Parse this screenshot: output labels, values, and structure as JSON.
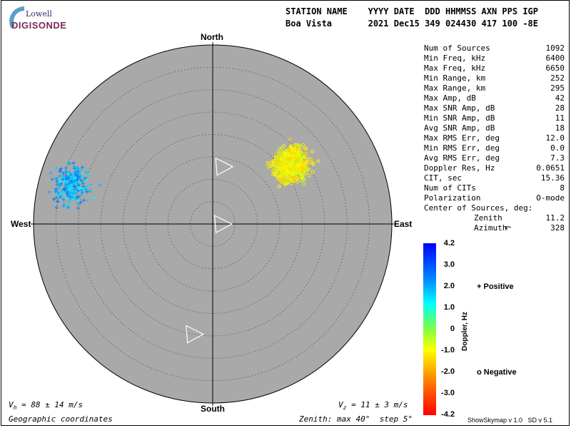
{
  "logo": {
    "top_text": "Lowell",
    "bottom_text": "DIGISONDE"
  },
  "header": {
    "line1": "STATION NAME    YYYY DATE  DDD HHMMSS AXN PPS IGP",
    "line2": "Boa Vista       2021 Dec15 349 024430 417 100 -8E"
  },
  "stats": [
    {
      "label": "Num of Sources",
      "value": "1092"
    },
    {
      "label": "Min Freq, kHz",
      "value": "6400"
    },
    {
      "label": "Max Freq, kHz",
      "value": "6650"
    },
    {
      "label": "Min Range, km",
      "value": "252"
    },
    {
      "label": "Max Range, km",
      "value": "295"
    },
    {
      "label": "Max Amp, dB",
      "value": "42"
    },
    {
      "label": "Max SNR Amp, dB",
      "value": "28"
    },
    {
      "label": "Min SNR Amp, dB",
      "value": "11"
    },
    {
      "label": "Avg SNR Amp, dB",
      "value": "18"
    },
    {
      "label": "Max RMS Err, deg",
      "value": "12.0"
    },
    {
      "label": "Min RMS Err, deg",
      "value": "0.0"
    },
    {
      "label": "Avg RMS Err, deg",
      "value": "7.3"
    },
    {
      "label": "Doppler Res, Hz",
      "value": "0.0651"
    },
    {
      "label": "CIT, sec",
      "value": "15.36"
    },
    {
      "label": "Num of CITs",
      "value": "8"
    },
    {
      "label": "Polarization",
      "value": "O-mode"
    }
  ],
  "center": {
    "heading": "Center of Sources, deg:",
    "zenith_label": "Zenith",
    "zenith_value": "11.2",
    "azimuth_label": "Azimuth",
    "azimuth_value": "328"
  },
  "compass": {
    "north": "North",
    "south": "South",
    "east": "East",
    "west": "West"
  },
  "footer": {
    "vh": "V",
    "vh_sub": "h",
    "vh_value": " = 88 ± 14 m/s",
    "vz": "V",
    "vz_sub": "z",
    "vz_value": " = 11 ± 3 m/s",
    "coords": "Geographic coordinates",
    "zenith_info": "Zenith: max 40°  step 5°",
    "version": "ShowSkymap v 1.0   SD v 5.1"
  },
  "colorbar": {
    "title": "Doppler, Hz",
    "ticks": [
      "4.2",
      "3.0",
      "2.0",
      "1.0",
      "0",
      "-1.0",
      "-2.0",
      "-3.0",
      "-4.2"
    ],
    "range": [
      -4.2,
      4.2
    ]
  },
  "legend": {
    "positive": "+ Positive",
    "positive_color": "#1a1ab0",
    "negative": "o Negative",
    "negative_color": "#cc1111"
  },
  "colors": {
    "plot_bg": "#a9a9a9",
    "ring": "#555555"
  },
  "chart_data": {
    "type": "scatter",
    "title": "",
    "projection": "polar skymap",
    "zenith_max_deg": 40,
    "zenith_step_deg": 5,
    "clusters": [
      {
        "name": "Positive",
        "marker": "+",
        "zenith_center_deg": 33,
        "azimuth_center_deg": 285,
        "zenith_spread_deg": 4,
        "azimuth_spread_deg": 8,
        "doppler_range_hz": [
          1.2,
          2.8
        ],
        "count": 230
      },
      {
        "name": "Negative",
        "marker": "o",
        "zenith_center_deg": 22,
        "azimuth_center_deg": 53,
        "zenith_spread_deg": 4,
        "azimuth_spread_deg": 9,
        "doppler_range_hz": [
          -1.8,
          -0.4
        ],
        "count": 600
      }
    ],
    "arrows": [
      {
        "zenith_deg": 13,
        "azimuth_deg": 10
      },
      {
        "zenith_deg": 2,
        "azimuth_deg": 90
      },
      {
        "zenith_deg": 25,
        "azimuth_deg": 190
      }
    ]
  }
}
